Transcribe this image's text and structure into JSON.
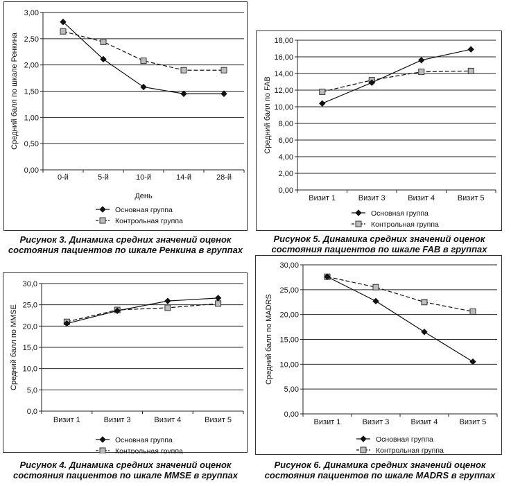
{
  "chart_data": [
    {
      "id": "renkin",
      "type": "line",
      "caption": [
        "Рисунок 3. Динамика средних значений оценок",
        "состояния пациентов по шкале Ренкина в группах"
      ],
      "categories": [
        "0-й",
        "5-й",
        "10-й",
        "14-й",
        "28-й"
      ],
      "xlabel": "День",
      "ylabel": "Средний балл по шкале Ренкина",
      "ylim": [
        0,
        3
      ],
      "yticks": [
        0,
        0.5,
        1,
        1.5,
        2,
        2.5,
        3
      ],
      "ytick_labels": [
        "0,00",
        "0,50",
        "1,00",
        "1,50",
        "2,00",
        "2,50",
        "3,00"
      ],
      "grid": "horizontal",
      "legend": "bottom",
      "series": [
        {
          "name": "Основная группа",
          "values": [
            2.82,
            2.11,
            1.58,
            1.45,
            1.45
          ],
          "marker": "diamond",
          "line": "solid"
        },
        {
          "name": "Контрольная группа",
          "values": [
            2.64,
            2.44,
            2.08,
            1.9,
            1.9
          ],
          "marker": "square",
          "line": "dashed"
        }
      ]
    },
    {
      "id": "fab",
      "type": "line",
      "caption": [
        "Рисунок 5. Динамика средних значений оценок",
        "состояния пациентов по шкале FAB в группах"
      ],
      "categories": [
        "Визит 1",
        "Визит 3",
        "Визит 4",
        "Визит 5"
      ],
      "xlabel": "",
      "ylabel": "Средний балл по FAB",
      "ylim": [
        0,
        18
      ],
      "yticks": [
        0,
        2,
        4,
        6,
        8,
        10,
        12,
        14,
        16,
        18
      ],
      "ytick_labels": [
        "0,00",
        "2,00",
        "4,00",
        "6,00",
        "8,00",
        "10,00",
        "12,00",
        "14,00",
        "16,00",
        "18,00"
      ],
      "grid": "horizontal",
      "legend": "bottom",
      "series": [
        {
          "name": "Основная группа",
          "values": [
            10.4,
            12.9,
            15.6,
            16.9
          ],
          "marker": "diamond",
          "line": "solid"
        },
        {
          "name": "Контрольная группа",
          "values": [
            11.8,
            13.2,
            14.2,
            14.3
          ],
          "marker": "square",
          "line": "dashed"
        }
      ]
    },
    {
      "id": "mmse",
      "type": "line",
      "caption": [
        "Рисунок 4. Динамика средних значений оценок",
        "состояния пациентов по шкале MMSE в группах"
      ],
      "categories": [
        "Визит 1",
        "Визит 3",
        "Визит 4",
        "Визит 5"
      ],
      "xlabel": "",
      "ylabel": "Средний балл по MMSE",
      "ylim": [
        0,
        30
      ],
      "yticks": [
        0,
        5,
        10,
        15,
        20,
        25,
        30
      ],
      "ytick_labels": [
        "0,0",
        "5,0",
        "10,0",
        "15,0",
        "20,0",
        "25,0",
        "30,0"
      ],
      "grid": "horizontal",
      "legend": "bottom",
      "series": [
        {
          "name": "Основная группа",
          "values": [
            20.6,
            23.6,
            25.9,
            26.6
          ],
          "marker": "diamond",
          "line": "solid"
        },
        {
          "name": "Контрольная группа",
          "values": [
            21.0,
            23.8,
            24.3,
            25.3
          ],
          "marker": "square",
          "line": "dashed"
        }
      ]
    },
    {
      "id": "madrs",
      "type": "line",
      "caption": [
        "Рисунок 6. Динамика средних значений оценок",
        "состояния пациентов по шкале MADRS в группах"
      ],
      "categories": [
        "Визит 1",
        "Визит 3",
        "Визит 4",
        "Визит 5"
      ],
      "xlabel": "",
      "ylabel": "Средний балл по MADRS",
      "ylim": [
        0,
        30
      ],
      "yticks": [
        0,
        5,
        10,
        15,
        20,
        25,
        30
      ],
      "ytick_labels": [
        "0,00",
        "5,00",
        "10,00",
        "15,00",
        "20,00",
        "25,00",
        "30,00"
      ],
      "grid": "horizontal",
      "legend": "bottom",
      "series": [
        {
          "name": "Основная группа",
          "values": [
            27.6,
            22.7,
            16.5,
            10.5
          ],
          "marker": "diamond",
          "line": "solid"
        },
        {
          "name": "Контрольная группа",
          "values": [
            27.6,
            25.5,
            22.5,
            20.6
          ],
          "marker": "square",
          "line": "dashed"
        }
      ]
    }
  ]
}
